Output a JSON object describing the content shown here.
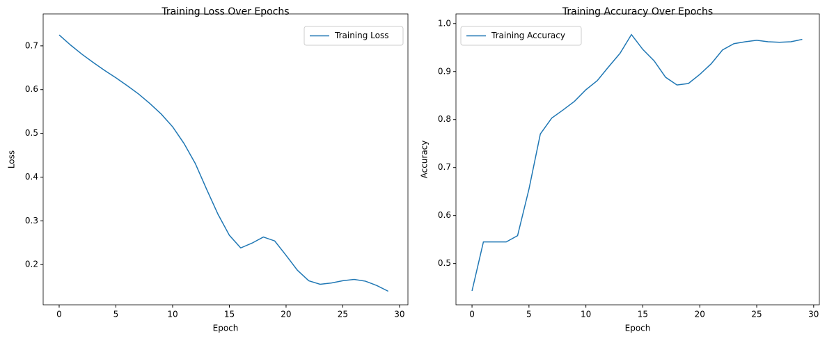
{
  "chart_data": [
    {
      "type": "line",
      "title": "Training Loss Over Epochs",
      "x_label": "Epoch",
      "y_label": "Loss",
      "x": [
        0,
        1,
        2,
        3,
        4,
        5,
        6,
        7,
        8,
        9,
        10,
        11,
        12,
        13,
        14,
        15,
        16,
        17,
        18,
        19,
        20,
        21,
        22,
        23,
        24,
        25,
        26,
        27,
        28,
        29
      ],
      "series": [
        {
          "name": "Training Loss",
          "color": "#1f77b4",
          "values": [
            0.725,
            0.702,
            0.681,
            0.662,
            0.644,
            0.627,
            0.609,
            0.59,
            0.568,
            0.544,
            0.515,
            0.477,
            0.431,
            0.372,
            0.315,
            0.267,
            0.238,
            0.249,
            0.263,
            0.254,
            0.221,
            0.187,
            0.163,
            0.155,
            0.158,
            0.163,
            0.166,
            0.162,
            0.152,
            0.139
          ]
        }
      ],
      "xlim": [
        -1.41,
        30.74
      ],
      "ylim": [
        0.108,
        0.773
      ],
      "xticks": [
        0,
        5,
        10,
        15,
        20,
        25,
        30
      ],
      "yticks": [
        0.2,
        0.3,
        0.4,
        0.5,
        0.6,
        0.7
      ],
      "legend": "upper right"
    },
    {
      "type": "line",
      "title": "Training Accuracy Over Epochs",
      "x_label": "Epoch",
      "y_label": "Accuracy",
      "x": [
        0,
        1,
        2,
        3,
        4,
        5,
        6,
        7,
        8,
        9,
        10,
        11,
        12,
        13,
        14,
        15,
        16,
        17,
        18,
        19,
        20,
        21,
        22,
        23,
        24,
        25,
        26,
        27,
        28,
        29
      ],
      "series": [
        {
          "name": "Training Accuracy",
          "color": "#1f77b4",
          "values": [
            0.443,
            0.545,
            0.545,
            0.545,
            0.558,
            0.655,
            0.77,
            0.803,
            0.82,
            0.838,
            0.862,
            0.881,
            0.91,
            0.938,
            0.977,
            0.946,
            0.922,
            0.888,
            0.872,
            0.875,
            0.894,
            0.916,
            0.945,
            0.958,
            0.962,
            0.965,
            0.962,
            0.961,
            0.962,
            0.967
          ]
        }
      ],
      "xlim": [
        -1.41,
        30.5
      ],
      "ylim": [
        0.414,
        1.02
      ],
      "xticks": [
        0,
        5,
        10,
        15,
        20,
        25,
        30
      ],
      "yticks": [
        0.5,
        0.6,
        0.7,
        0.8,
        0.9,
        {
          "value": 1,
          "label": "1.0"
        }
      ],
      "legend": "upper left"
    }
  ]
}
